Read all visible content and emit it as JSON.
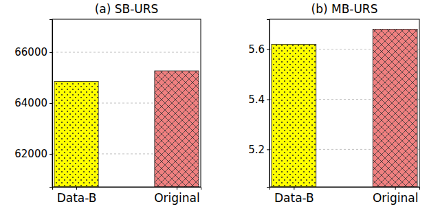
{
  "chart_data": [
    {
      "type": "bar",
      "title": "(a) SB-URS",
      "categories": [
        "Data-B",
        "Original"
      ],
      "values": [
        64850,
        65270
      ],
      "colors": [
        "#ffff00",
        "#f08080"
      ],
      "ylim": [
        60700,
        67300
      ],
      "yticks": [
        62000,
        64000,
        66000
      ],
      "grid": true
    },
    {
      "type": "bar",
      "title": "(b) MB-URS",
      "categories": [
        "Data-B",
        "Original"
      ],
      "values": [
        5.62,
        5.68
      ],
      "colors": [
        "#ffff00",
        "#f08080"
      ],
      "ylim": [
        5.05,
        5.72
      ],
      "yticks": [
        5.2,
        5.4,
        5.6
      ],
      "grid": true
    }
  ]
}
